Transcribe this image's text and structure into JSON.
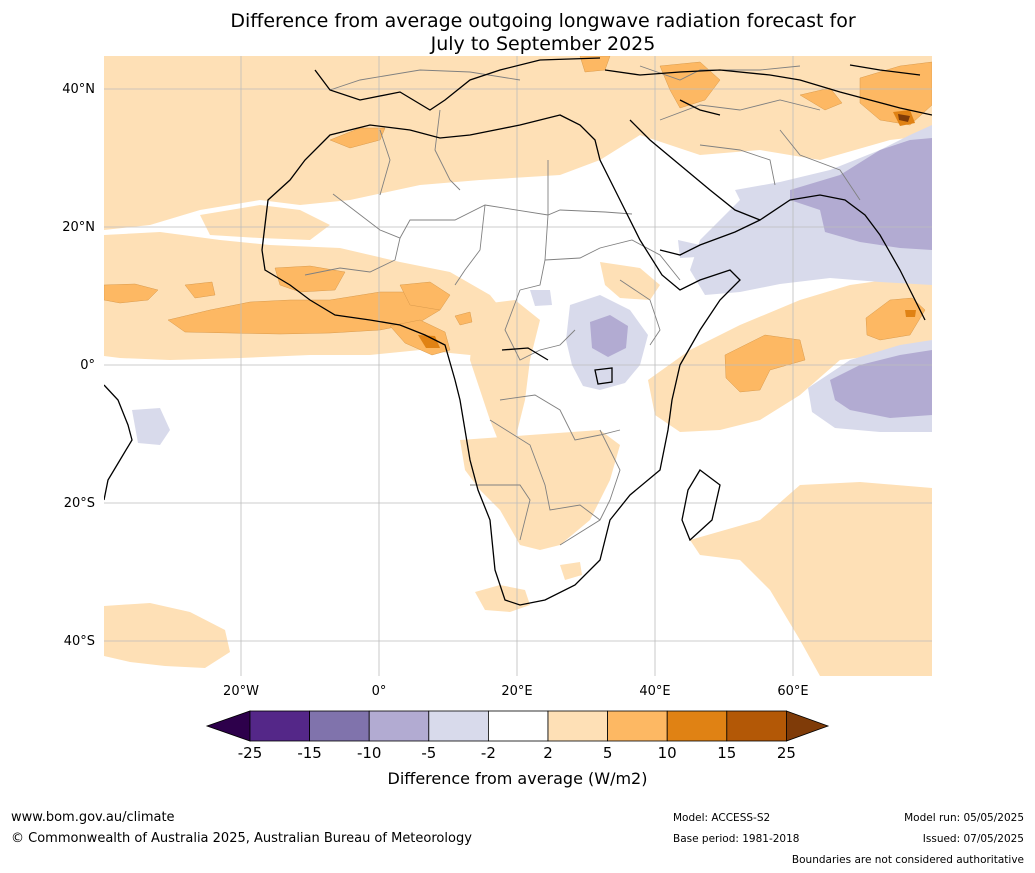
{
  "title": {
    "line1": "Difference from average outgoing longwave radiation forecast for",
    "line2": "July to September 2025"
  },
  "axes": {
    "lat_labels": [
      "40°N",
      "20°N",
      "0°",
      "20°S",
      "40°S"
    ],
    "lon_labels": [
      "20°W",
      "0°",
      "20°E",
      "40°E",
      "60°E"
    ]
  },
  "colorbar": {
    "ticks": [
      "-25",
      "-15",
      "-10",
      "-5",
      "-2",
      "2",
      "5",
      "10",
      "15",
      "25"
    ],
    "label": "Difference from average (W/m2)",
    "colors": {
      "below_min": "#2d004b",
      "n25_n15": "#542788",
      "n15_n10": "#8073ac",
      "n10_n5": "#b2abd2",
      "n5_n2": "#d8daeb",
      "n2_p2": "#ffffff",
      "p2_p5": "#fee0b6",
      "p5_p10": "#fdb863",
      "p10_p15": "#e08214",
      "p15_p25": "#b35806",
      "above_max": "#7f3b08"
    }
  },
  "footer": {
    "url": "www.bom.gov.au/climate",
    "copyright": "© Commonwealth of Australia 2025, Australian Bureau of Meteorology",
    "model": "Model: ACCESS-S2",
    "base_period": "Base period: 1981-2018",
    "model_run": "Model run: 05/05/2025",
    "issued": "Issued: 07/05/2025",
    "disclaimer": "Boundaries are not considered authoritative"
  }
}
